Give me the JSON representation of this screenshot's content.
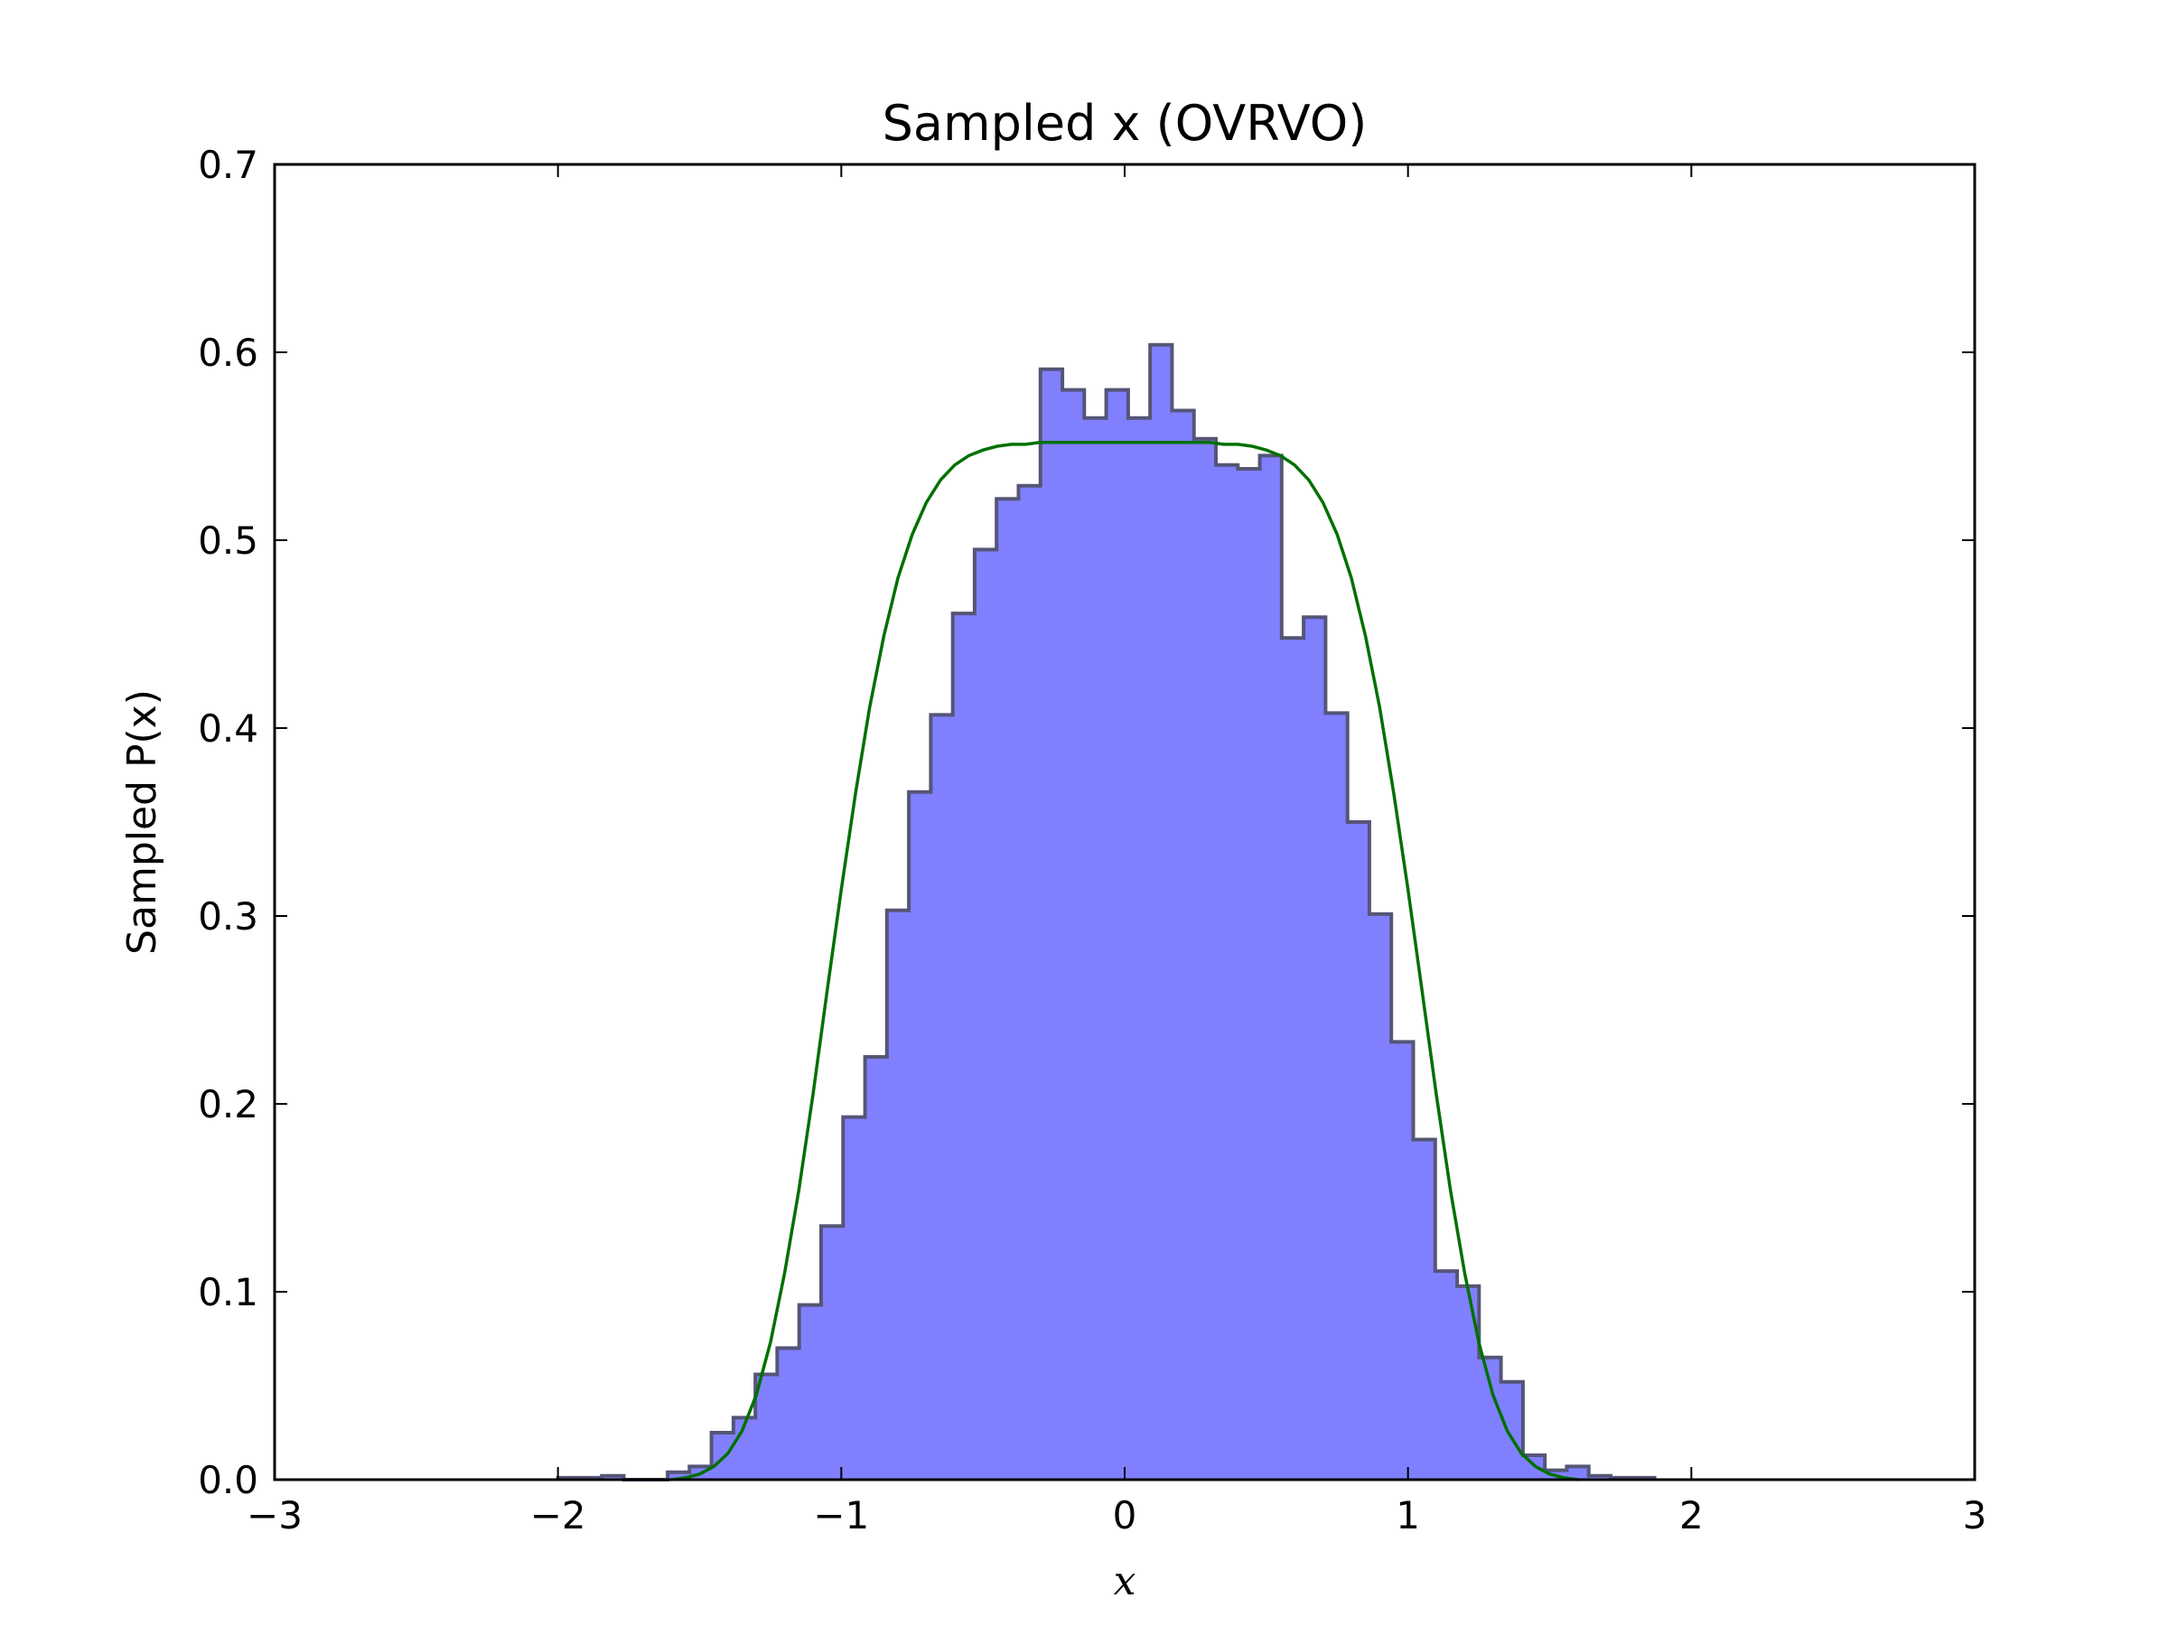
{
  "chart_data": {
    "type": "histogram",
    "title": "Sampled x (OVRVO)",
    "xlabel": "x",
    "ylabel": "Sampled P(x)",
    "xlim": [
      -3,
      3
    ],
    "ylim": [
      0,
      0.7
    ],
    "xticks": [
      -3,
      -2,
      -1,
      0,
      1,
      2,
      3
    ],
    "xtick_labels": [
      "−3",
      "−2",
      "−1",
      "0",
      "1",
      "2",
      "3"
    ],
    "yticks": [
      0.0,
      0.1,
      0.2,
      0.3,
      0.4,
      0.5,
      0.6,
      0.7
    ],
    "ytick_labels": [
      "0.0",
      "0.1",
      "0.2",
      "0.3",
      "0.4",
      "0.5",
      "0.6",
      "0.7"
    ],
    "grid": false,
    "histogram": {
      "bin_start": -2.0,
      "bin_width": 0.0774,
      "fill_color": "#8080ff",
      "edge_color": "#555577",
      "values": [
        0.001,
        0.001,
        0.002,
        0.0,
        0.0,
        0.004,
        0.007,
        0.025,
        0.033,
        0.056,
        0.07,
        0.093,
        0.135,
        0.193,
        0.225,
        0.303,
        0.366,
        0.407,
        0.461,
        0.495,
        0.522,
        0.529,
        0.591,
        0.58,
        0.565,
        0.58,
        0.565,
        0.604,
        0.569,
        0.554,
        0.54,
        0.538,
        0.545,
        0.448,
        0.459,
        0.408,
        0.35,
        0.301,
        0.233,
        0.181,
        0.111,
        0.103,
        0.065,
        0.052,
        0.013,
        0.005,
        0.007,
        0.002,
        0.001,
        0.001
      ]
    },
    "curve": {
      "color": "#007000",
      "x": [
        -1.6,
        -1.55,
        -1.5,
        -1.45,
        -1.4,
        -1.35,
        -1.3,
        -1.25,
        -1.2,
        -1.15,
        -1.1,
        -1.05,
        -1.0,
        -0.95,
        -0.9,
        -0.85,
        -0.8,
        -0.75,
        -0.7,
        -0.65,
        -0.6,
        -0.55,
        -0.5,
        -0.45,
        -0.4,
        -0.35,
        -0.3,
        -0.25,
        -0.2,
        -0.15,
        -0.1,
        -0.05,
        0.0,
        0.05,
        0.1,
        0.15,
        0.2,
        0.25,
        0.3,
        0.35,
        0.4,
        0.45,
        0.5,
        0.55,
        0.6,
        0.65,
        0.7,
        0.75,
        0.8,
        0.85,
        0.9,
        0.95,
        1.0,
        1.05,
        1.1,
        1.15,
        1.2,
        1.25,
        1.3,
        1.35,
        1.4,
        1.45,
        1.5,
        1.55,
        1.6
      ],
      "y": [
        0.0,
        0.001,
        0.003,
        0.007,
        0.014,
        0.026,
        0.045,
        0.073,
        0.11,
        0.154,
        0.205,
        0.26,
        0.314,
        0.365,
        0.411,
        0.449,
        0.48,
        0.503,
        0.52,
        0.532,
        0.54,
        0.545,
        0.548,
        0.55,
        0.551,
        0.551,
        0.552,
        0.552,
        0.552,
        0.552,
        0.552,
        0.552,
        0.552,
        0.552,
        0.552,
        0.552,
        0.552,
        0.552,
        0.552,
        0.551,
        0.551,
        0.55,
        0.548,
        0.545,
        0.54,
        0.532,
        0.52,
        0.503,
        0.48,
        0.449,
        0.411,
        0.365,
        0.314,
        0.26,
        0.205,
        0.154,
        0.11,
        0.073,
        0.045,
        0.026,
        0.014,
        0.007,
        0.003,
        0.001,
        0.0
      ]
    }
  }
}
